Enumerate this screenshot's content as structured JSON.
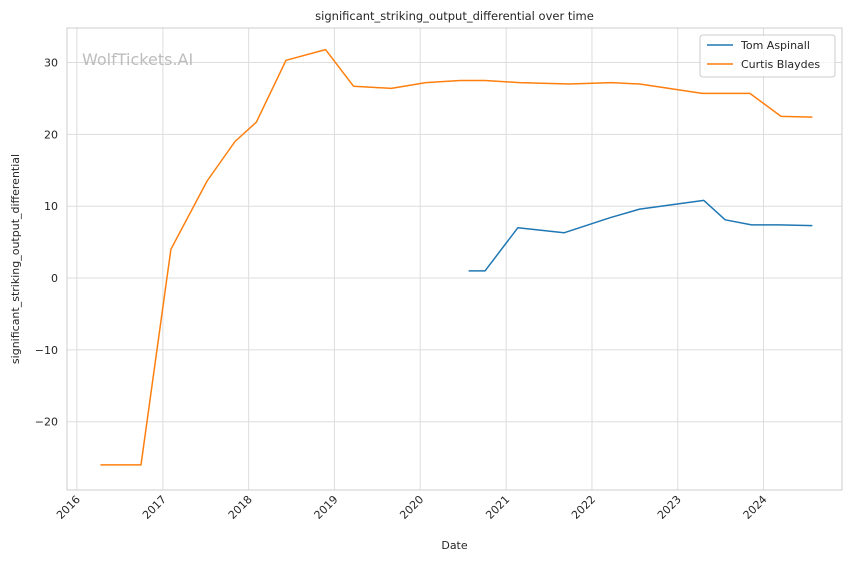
{
  "chart_data": {
    "type": "line",
    "title": "significant_striking_output_differential over time",
    "xlabel": "Date",
    "ylabel": "significant_striking_output_differential",
    "watermark": "WolfTickets.AI",
    "x_ticks": [
      "2016",
      "2017",
      "2018",
      "2019",
      "2020",
      "2021",
      "2022",
      "2023",
      "2024"
    ],
    "xlim": [
      "2015-11-20",
      "2024-11-30"
    ],
    "ylim": [
      -29.5,
      34.8
    ],
    "y_ticks": [
      -20,
      -10,
      0,
      10,
      20,
      30
    ],
    "y_tick_labels": [
      "−20",
      "−10",
      "0",
      "10",
      "20",
      "30"
    ],
    "grid": true,
    "legend_position": "top-right",
    "series": [
      {
        "name": "Tom Aspinall",
        "color": "#1f77b4",
        "points": [
          [
            "2020-07-25",
            1.0
          ],
          [
            "2020-10-03",
            1.0
          ],
          [
            "2021-02-20",
            7.0
          ],
          [
            "2021-09-04",
            6.3
          ],
          [
            "2022-03-19",
            8.4
          ],
          [
            "2022-07-23",
            9.6
          ],
          [
            "2023-04-22",
            10.8
          ],
          [
            "2023-07-22",
            8.1
          ],
          [
            "2023-11-11",
            7.4
          ],
          [
            "2024-03-09",
            7.4
          ],
          [
            "2024-07-27",
            7.3
          ]
        ]
      },
      {
        "name": "Curtis Blaydes",
        "color": "#ff7f0e",
        "points": [
          [
            "2016-04-10",
            -26.0
          ],
          [
            "2016-09-30",
            -26.0
          ],
          [
            "2017-02-04",
            4.0
          ],
          [
            "2017-07-08",
            13.5
          ],
          [
            "2017-11-04",
            19.0
          ],
          [
            "2018-02-03",
            21.7
          ],
          [
            "2018-06-09",
            30.3
          ],
          [
            "2018-11-24",
            31.8
          ],
          [
            "2019-03-23",
            26.7
          ],
          [
            "2019-08-31",
            26.4
          ],
          [
            "2020-01-25",
            27.2
          ],
          [
            "2020-06-20",
            27.5
          ],
          [
            "2020-10-03",
            27.5
          ],
          [
            "2021-02-27",
            27.2
          ],
          [
            "2021-09-25",
            27.0
          ],
          [
            "2022-03-26",
            27.2
          ],
          [
            "2022-07-23",
            27.0
          ],
          [
            "2023-04-15",
            25.7
          ],
          [
            "2023-11-04",
            25.7
          ],
          [
            "2024-03-16",
            22.5
          ],
          [
            "2024-07-27",
            22.4
          ]
        ]
      }
    ]
  }
}
